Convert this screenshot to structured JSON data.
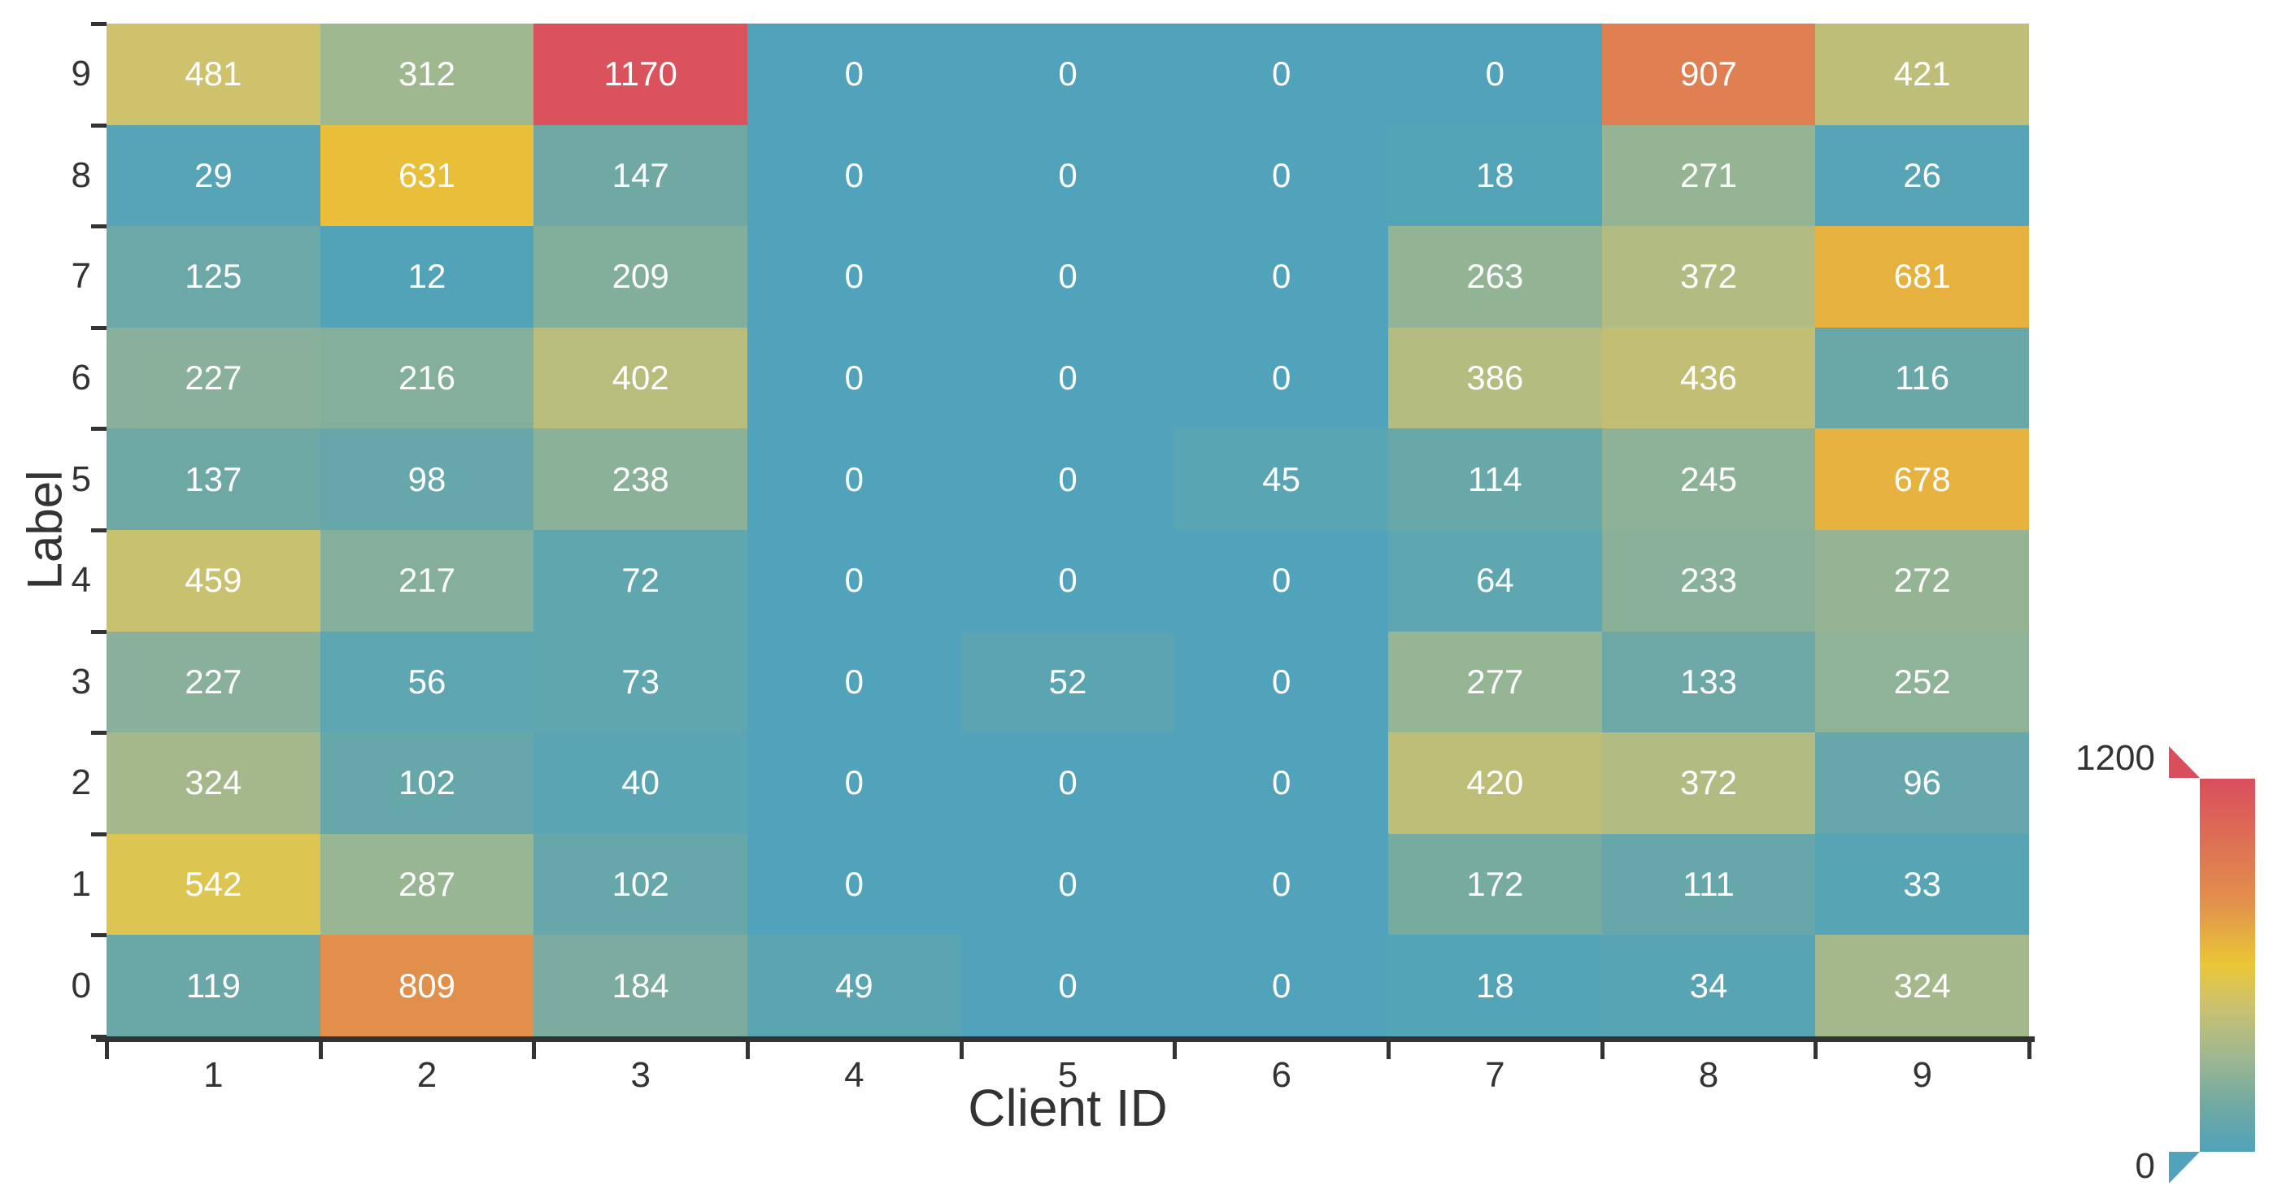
{
  "figure": {
    "colors": {
      "background": "#ffffff",
      "axis": "#333333",
      "tick_label": "#333333",
      "cell_text": "#ffffff"
    },
    "x_axis": {
      "title": "Client ID"
    },
    "y_axis": {
      "title": "Label"
    },
    "colorbar": {
      "max_label": "1200",
      "min_label": "0"
    }
  },
  "chart_data": {
    "type": "heatmap",
    "title": "",
    "xlabel": "Client ID",
    "ylabel": "Label",
    "x_categories": [
      "1",
      "2",
      "3",
      "4",
      "5",
      "6",
      "7",
      "8",
      "9"
    ],
    "y_categories_top_to_bottom": [
      "9",
      "8",
      "7",
      "6",
      "5",
      "4",
      "3",
      "2",
      "1",
      "0"
    ],
    "vmin": 0,
    "vmax": 1200,
    "legend_position": "right",
    "grid": false,
    "colormap_stops": [
      {
        "value": 0,
        "color": "#50a3ba"
      },
      {
        "value": 150,
        "color": "#71a9a3"
      },
      {
        "value": 300,
        "color": "#9db791"
      },
      {
        "value": 480,
        "color": "#cec26c"
      },
      {
        "value": 600,
        "color": "#eac736"
      },
      {
        "value": 800,
        "color": "#e2914c"
      },
      {
        "value": 1200,
        "color": "#d94e5d"
      }
    ],
    "rows": [
      {
        "label": "9",
        "values": [
          481,
          312,
          1170,
          0,
          0,
          0,
          0,
          907,
          421
        ]
      },
      {
        "label": "8",
        "values": [
          29,
          631,
          147,
          0,
          0,
          0,
          18,
          271,
          26
        ]
      },
      {
        "label": "7",
        "values": [
          125,
          12,
          209,
          0,
          0,
          0,
          263,
          372,
          681
        ]
      },
      {
        "label": "6",
        "values": [
          227,
          216,
          402,
          0,
          0,
          0,
          386,
          436,
          116
        ]
      },
      {
        "label": "5",
        "values": [
          137,
          98,
          238,
          0,
          0,
          45,
          114,
          245,
          678
        ]
      },
      {
        "label": "4",
        "values": [
          459,
          217,
          72,
          0,
          0,
          0,
          64,
          233,
          272
        ]
      },
      {
        "label": "3",
        "values": [
          227,
          56,
          73,
          0,
          52,
          0,
          277,
          133,
          252
        ]
      },
      {
        "label": "2",
        "values": [
          324,
          102,
          40,
          0,
          0,
          0,
          420,
          372,
          96
        ]
      },
      {
        "label": "1",
        "values": [
          542,
          287,
          102,
          0,
          0,
          0,
          172,
          111,
          33
        ]
      },
      {
        "label": "0",
        "values": [
          119,
          809,
          184,
          49,
          0,
          0,
          18,
          34,
          324
        ]
      }
    ]
  }
}
